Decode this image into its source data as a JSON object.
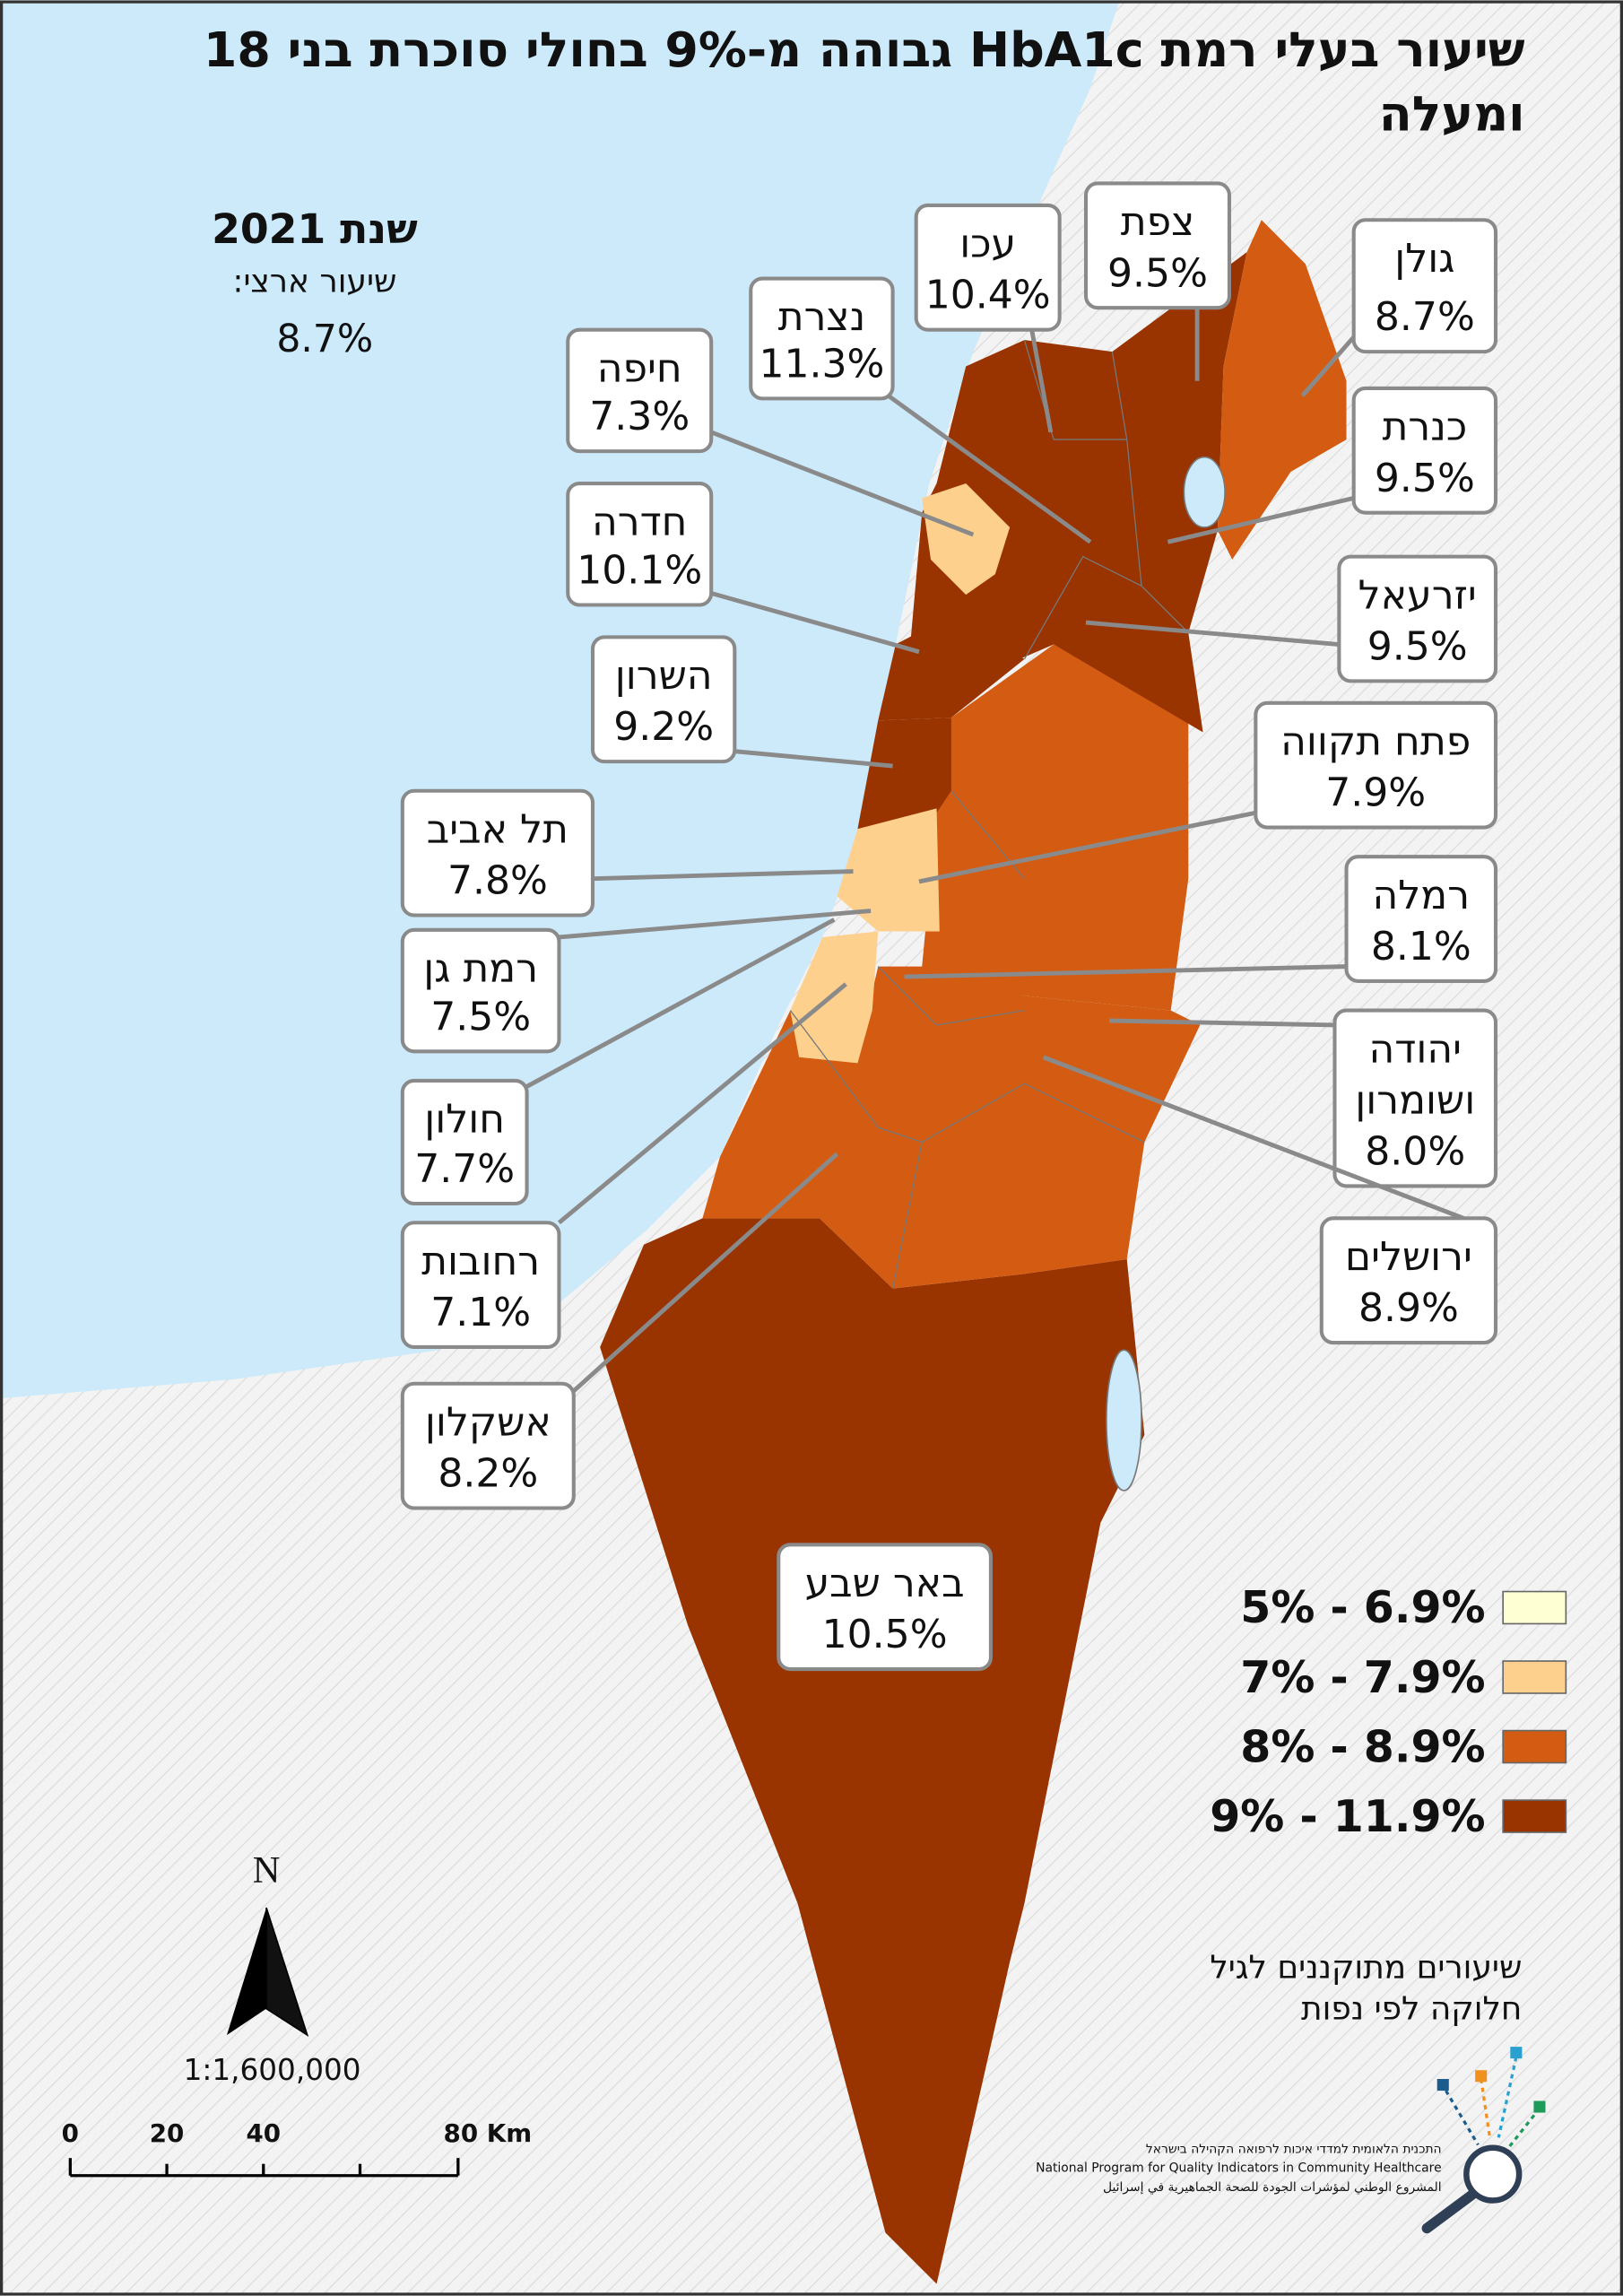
{
  "title": [
    "שיעור  בעלי רמת  HbA1c גבוהה מ-9% בחולי סוכרת בני 18",
    "ומעלה"
  ],
  "year": "שנת 2021",
  "national_label": "שיעור ארצי:",
  "national_value": "8.7%",
  "regions": [
    {
      "name_lines": [
        "צפת"
      ],
      "value": "9.5%"
    },
    {
      "name_lines": [
        "עכו"
      ],
      "value": "10.4%"
    },
    {
      "name_lines": [
        "נצרת"
      ],
      "value": "11.3%"
    },
    {
      "name_lines": [
        "חיפה"
      ],
      "value": "7.3%"
    },
    {
      "name_lines": [
        "גולן"
      ],
      "value": "8.7%"
    },
    {
      "name_lines": [
        "כנרת"
      ],
      "value": "9.5%"
    },
    {
      "name_lines": [
        "חדרה"
      ],
      "value": "10.1%"
    },
    {
      "name_lines": [
        "יזרעאל"
      ],
      "value": "9.5%"
    },
    {
      "name_lines": [
        "השרון"
      ],
      "value": "9.2%"
    },
    {
      "name_lines": [
        "פתח תקווה"
      ],
      "value": "7.9%"
    },
    {
      "name_lines": [
        "תל אביב"
      ],
      "value": "7.8%"
    },
    {
      "name_lines": [
        "רמלה"
      ],
      "value": "8.1%"
    },
    {
      "name_lines": [
        "רמת גן"
      ],
      "value": "7.5%"
    },
    {
      "name_lines": [
        "יהודה",
        "ושומרון"
      ],
      "value": "8.0%"
    },
    {
      "name_lines": [
        "חולון"
      ],
      "value": "7.7%"
    },
    {
      "name_lines": [
        "ירושלים"
      ],
      "value": "8.9%"
    },
    {
      "name_lines": [
        "רחובות"
      ],
      "value": "7.1%"
    },
    {
      "name_lines": [
        "אשקלון"
      ],
      "value": "8.2%"
    },
    {
      "name_lines": [
        "באר שבע"
      ],
      "value": "10.5%"
    }
  ],
  "legend": [
    {
      "label": "5% - 6.9%",
      "color": "#ffffd4"
    },
    {
      "label": "7% - 7.9%",
      "color": "#fdd08e"
    },
    {
      "label": "8% - 8.9%",
      "color": "#d35c12"
    },
    {
      "label": "9% - 11.9%",
      "color": "#993300"
    }
  ],
  "note": [
    "שיעורים מתוקננים לגיל",
    "חלוקה לפי נפות"
  ],
  "north": "N",
  "scale": "1:1,600,000",
  "scalebar": [
    "0",
    "20",
    "40",
    "80 Km"
  ],
  "logo": [
    "התכנית הלאומית למדדי איכות לרפואה הקהילה בישראל",
    "National Program for Quality Indicators in Community Healthcare",
    "المشروع الوطني لمؤشرات الجودة للصحة الجماهيرية في إسرائيل"
  ]
}
